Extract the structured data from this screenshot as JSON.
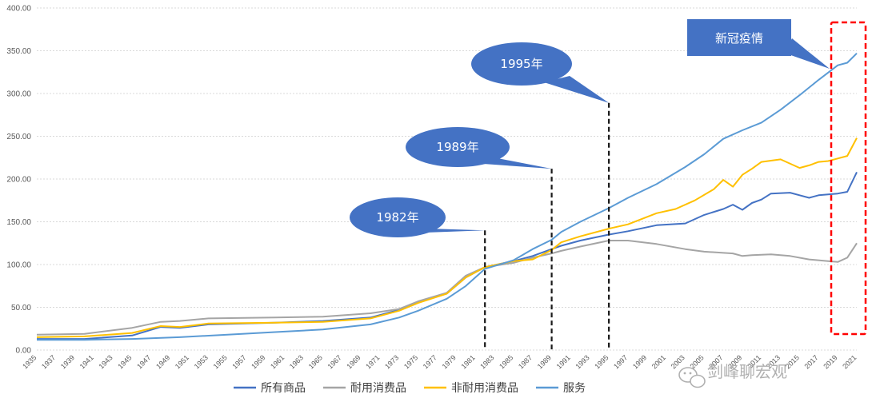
{
  "chart_data": {
    "type": "line",
    "ylim": [
      0,
      400
    ],
    "yticks": [
      "0.00",
      "50.00",
      "100.00",
      "150.00",
      "200.00",
      "250.00",
      "300.00",
      "350.00",
      "400.00"
    ],
    "xticks": [
      "1935",
      "1937",
      "1939",
      "1941",
      "1943",
      "1945",
      "1947",
      "1949",
      "1951",
      "1953",
      "1955",
      "1957",
      "1959",
      "1961",
      "1963",
      "1965",
      "1967",
      "1969",
      "1971",
      "1973",
      "1975",
      "1977",
      "1979",
      "1981",
      "1983",
      "1985",
      "1987",
      "1989",
      "1991",
      "1993",
      "1995",
      "1997",
      "1999",
      "2001",
      "2003",
      "2005",
      "2007",
      "2009",
      "2011",
      "2013",
      "2015",
      "2017",
      "2019",
      "2021"
    ],
    "grid": true,
    "legend_position": "bottom",
    "series": [
      {
        "name": "所有商品",
        "color": "#4472c4",
        "points": [
          [
            1935,
            13
          ],
          [
            1940,
            13
          ],
          [
            1945,
            17
          ],
          [
            1948,
            27
          ],
          [
            1950,
            26
          ],
          [
            1953,
            30
          ],
          [
            1960,
            32
          ],
          [
            1965,
            34
          ],
          [
            1970,
            38
          ],
          [
            1973,
            47
          ],
          [
            1975,
            56
          ],
          [
            1978,
            66
          ],
          [
            1980,
            85
          ],
          [
            1982,
            97
          ],
          [
            1985,
            104
          ],
          [
            1987,
            110
          ],
          [
            1989,
            118
          ],
          [
            1990,
            122
          ],
          [
            1992,
            128
          ],
          [
            1995,
            135
          ],
          [
            1997,
            139
          ],
          [
            2000,
            146
          ],
          [
            2003,
            148
          ],
          [
            2005,
            158
          ],
          [
            2007,
            165
          ],
          [
            2008,
            170
          ],
          [
            2009,
            164
          ],
          [
            2010,
            172
          ],
          [
            2011,
            176
          ],
          [
            2012,
            183
          ],
          [
            2014,
            184
          ],
          [
            2015,
            181
          ],
          [
            2016,
            178
          ],
          [
            2017,
            181
          ],
          [
            2018,
            182
          ],
          [
            2019,
            183
          ],
          [
            2020,
            185
          ],
          [
            2021,
            208
          ]
        ]
      },
      {
        "name": "耐用消费品",
        "color": "#a5a5a5",
        "points": [
          [
            1935,
            18
          ],
          [
            1940,
            19
          ],
          [
            1945,
            26
          ],
          [
            1948,
            33
          ],
          [
            1950,
            34
          ],
          [
            1953,
            37
          ],
          [
            1960,
            38
          ],
          [
            1965,
            39
          ],
          [
            1970,
            43
          ],
          [
            1973,
            48
          ],
          [
            1975,
            57
          ],
          [
            1978,
            67
          ],
          [
            1980,
            87
          ],
          [
            1982,
            97
          ],
          [
            1985,
            102
          ],
          [
            1987,
            108
          ],
          [
            1989,
            113
          ],
          [
            1990,
            116
          ],
          [
            1992,
            121
          ],
          [
            1995,
            128
          ],
          [
            1997,
            128
          ],
          [
            2000,
            124
          ],
          [
            2003,
            118
          ],
          [
            2005,
            115
          ],
          [
            2008,
            113
          ],
          [
            2009,
            110
          ],
          [
            2010,
            111
          ],
          [
            2012,
            112
          ],
          [
            2014,
            110
          ],
          [
            2016,
            106
          ],
          [
            2018,
            104
          ],
          [
            2019,
            103
          ],
          [
            2020,
            108
          ],
          [
            2021,
            125
          ]
        ]
      },
      {
        "name": "非耐用消费品",
        "color": "#ffc000",
        "points": [
          [
            1935,
            15
          ],
          [
            1940,
            16
          ],
          [
            1945,
            20
          ],
          [
            1948,
            28
          ],
          [
            1950,
            27
          ],
          [
            1953,
            31
          ],
          [
            1960,
            32
          ],
          [
            1965,
            33
          ],
          [
            1970,
            37
          ],
          [
            1973,
            46
          ],
          [
            1975,
            55
          ],
          [
            1978,
            66
          ],
          [
            1980,
            85
          ],
          [
            1982,
            97
          ],
          [
            1985,
            104
          ],
          [
            1987,
            106
          ],
          [
            1989,
            117
          ],
          [
            1990,
            126
          ],
          [
            1992,
            133
          ],
          [
            1995,
            142
          ],
          [
            1997,
            147
          ],
          [
            2000,
            160
          ],
          [
            2002,
            165
          ],
          [
            2004,
            175
          ],
          [
            2006,
            188
          ],
          [
            2007,
            199
          ],
          [
            2008,
            191
          ],
          [
            2009,
            205
          ],
          [
            2010,
            212
          ],
          [
            2011,
            220
          ],
          [
            2013,
            223
          ],
          [
            2015,
            213
          ],
          [
            2016,
            216
          ],
          [
            2017,
            220
          ],
          [
            2018,
            221
          ],
          [
            2019,
            224
          ],
          [
            2020,
            227
          ],
          [
            2021,
            248
          ]
        ]
      },
      {
        "name": "服务",
        "color": "#5b9bd5",
        "points": [
          [
            1935,
            12
          ],
          [
            1940,
            12
          ],
          [
            1945,
            13
          ],
          [
            1950,
            15
          ],
          [
            1955,
            18
          ],
          [
            1960,
            21
          ],
          [
            1965,
            24
          ],
          [
            1970,
            30
          ],
          [
            1973,
            38
          ],
          [
            1975,
            46
          ],
          [
            1978,
            60
          ],
          [
            1980,
            75
          ],
          [
            1982,
            95
          ],
          [
            1985,
            105
          ],
          [
            1987,
            118
          ],
          [
            1989,
            129
          ],
          [
            1990,
            138
          ],
          [
            1992,
            150
          ],
          [
            1995,
            166
          ],
          [
            1997,
            178
          ],
          [
            2000,
            194
          ],
          [
            2003,
            214
          ],
          [
            2005,
            229
          ],
          [
            2007,
            247
          ],
          [
            2009,
            257
          ],
          [
            2011,
            266
          ],
          [
            2013,
            281
          ],
          [
            2015,
            298
          ],
          [
            2017,
            316
          ],
          [
            2019,
            333
          ],
          [
            2020,
            336
          ],
          [
            2021,
            347
          ]
        ]
      }
    ],
    "annotations": [
      {
        "label": "1982年",
        "year": 1982,
        "value": 140
      },
      {
        "label": "1989年",
        "year": 1989,
        "value": 212
      },
      {
        "label": "1995年",
        "year": 1995,
        "value": 289
      },
      {
        "label": "新冠疫情",
        "year": 2020
      }
    ]
  },
  "watermark": "剑峰聊宏观"
}
